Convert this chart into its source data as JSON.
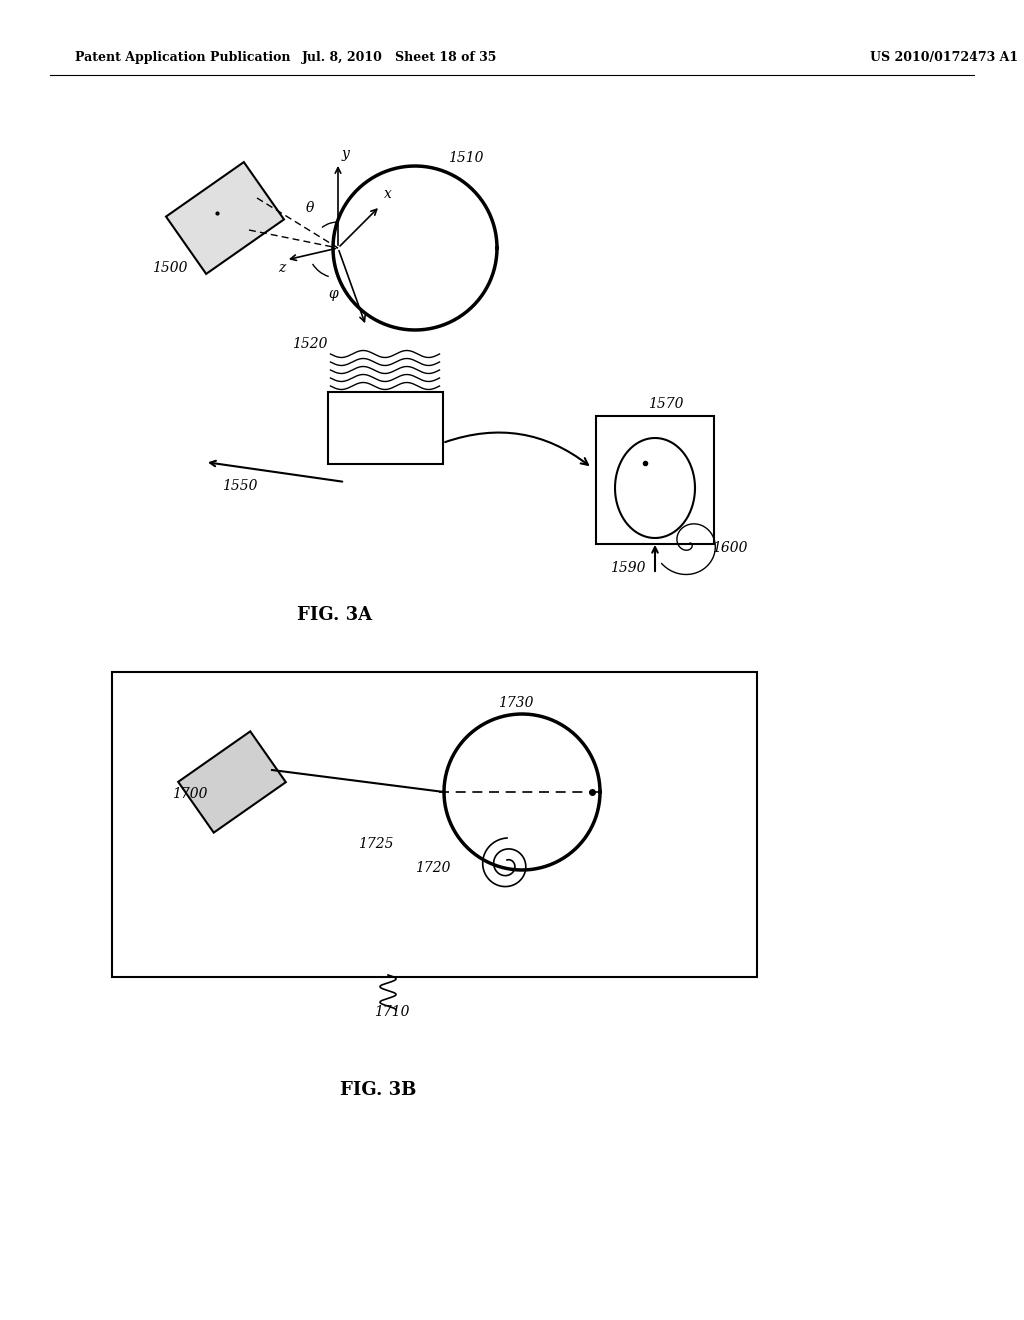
{
  "background_color": "#ffffff",
  "header_left": "Patent Application Publication",
  "header_mid": "Jul. 8, 2010   Sheet 18 of 35",
  "header_right": "US 2010/0172473 A1",
  "fig3a_label": "FIG. 3A",
  "fig3b_label": "FIG. 3B"
}
